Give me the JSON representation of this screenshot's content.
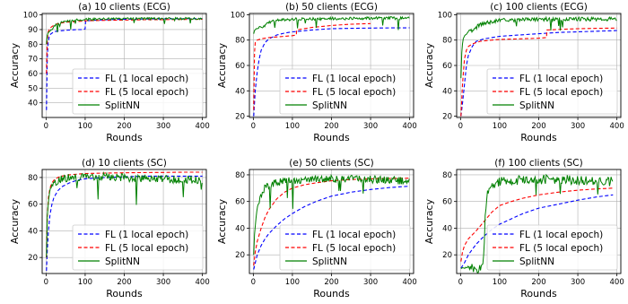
{
  "chart_data": [
    {
      "type": "line",
      "title": "(a) 10 clients (ECG)",
      "xlabel": "Rounds",
      "ylabel": "Accuracy",
      "xlim": [
        -10,
        410
      ],
      "ylim": [
        30,
        101
      ],
      "xticks": [
        0,
        100,
        200,
        300,
        400
      ],
      "yticks": [
        40,
        50,
        60,
        70,
        80,
        90,
        100
      ],
      "grid": true,
      "legend_position": "lower-right",
      "series": [
        {
          "name": "FL (1 local epoch)",
          "color": "#0000ff",
          "dash": "dashed",
          "x": [
            1,
            3,
            5,
            8,
            12,
            20,
            30,
            50,
            80,
            95,
            100,
            101,
            130,
            160,
            200,
            250,
            300,
            350,
            400
          ],
          "y": [
            35,
            70,
            80,
            85,
            87,
            88.5,
            89,
            89.5,
            90,
            90,
            90.5,
            96,
            96.5,
            96.8,
            97,
            97.2,
            97.3,
            97.4,
            97.5
          ]
        },
        {
          "name": "FL (5 local epoch)",
          "color": "#ff0000",
          "dash": "dashed",
          "x": [
            1,
            3,
            5,
            10,
            20,
            30,
            50,
            80,
            100,
            150,
            200,
            250,
            300,
            350,
            400
          ],
          "y": [
            60,
            82,
            88,
            91,
            93,
            94,
            95,
            95.5,
            96,
            96.3,
            96.5,
            96.7,
            96.8,
            96.9,
            97
          ]
        },
        {
          "name": "SplitNN",
          "color": "#008000",
          "dash": "solid",
          "x": [
            1,
            2,
            4,
            6,
            10,
            15,
            20,
            30,
            40,
            60,
            80,
            100,
            150,
            200,
            250,
            300,
            350,
            400
          ],
          "y": [
            80,
            85,
            87,
            88,
            89,
            90,
            92,
            94,
            95,
            96,
            96.5,
            97,
            97.2,
            97.3,
            97.4,
            97.5,
            97.5,
            97.5
          ],
          "noise": 0.8
        }
      ]
    },
    {
      "type": "line",
      "title": "(b) 50 clients (ECG)",
      "xlabel": "Rounds",
      "ylabel": "Accuracy",
      "xlim": [
        -10,
        410
      ],
      "ylim": [
        19,
        101
      ],
      "xticks": [
        0,
        100,
        200,
        300,
        400
      ],
      "yticks": [
        20,
        40,
        60,
        80,
        100
      ],
      "grid": true,
      "legend_position": "lower-right",
      "series": [
        {
          "name": "FL (1 local epoch)",
          "color": "#0000ff",
          "dash": "dashed",
          "x": [
            1,
            5,
            10,
            15,
            20,
            30,
            40,
            60,
            80,
            100,
            150,
            200,
            250,
            300,
            350,
            400
          ],
          "y": [
            20,
            40,
            55,
            65,
            72,
            78,
            81,
            84,
            85.5,
            86.5,
            88,
            89,
            89.3,
            89.5,
            89.6,
            89.7
          ]
        },
        {
          "name": "FL (5 local epoch)",
          "color": "#ff0000",
          "dash": "dashed",
          "x": [
            1,
            3,
            5,
            10,
            20,
            40,
            60,
            80,
            100,
            110,
            111,
            150,
            200,
            250,
            300
          ],
          "y": [
            25,
            70,
            78,
            80,
            81,
            82,
            82.5,
            83,
            83.5,
            84,
            88,
            90,
            91.5,
            92.5,
            93
          ]
        },
        {
          "name": "SplitNN",
          "color": "#008000",
          "dash": "solid",
          "x": [
            1,
            2,
            4,
            8,
            15,
            25,
            35,
            50,
            80,
            100,
            150,
            200,
            250,
            300,
            350,
            400
          ],
          "y": [
            85,
            87,
            88,
            89,
            90,
            90.5,
            93,
            95,
            96,
            96.5,
            96.8,
            97,
            97,
            97.2,
            97.3,
            97.3
          ],
          "noise": 1.2
        }
      ]
    },
    {
      "type": "line",
      "title": "(c) 100 clients (ECG)",
      "xlabel": "Rounds",
      "ylabel": "Accuracy",
      "xlim": [
        -10,
        410
      ],
      "ylim": [
        19,
        101
      ],
      "xticks": [
        0,
        100,
        200,
        300,
        400
      ],
      "yticks": [
        20,
        40,
        60,
        80,
        100
      ],
      "grid": true,
      "legend_position": "lower-right",
      "series": [
        {
          "name": "FL (1 local epoch)",
          "color": "#0000ff",
          "dash": "dashed",
          "x": [
            1,
            5,
            10,
            15,
            20,
            30,
            40,
            60,
            80,
            100,
            150,
            200,
            250,
            300,
            350,
            400
          ],
          "y": [
            20,
            30,
            45,
            60,
            68,
            75,
            79,
            81,
            82,
            83,
            84,
            85,
            86,
            86.5,
            87,
            87.5
          ]
        },
        {
          "name": "FL (5 local epoch)",
          "color": "#ff0000",
          "dash": "dashed",
          "x": [
            1,
            5,
            10,
            15,
            20,
            30,
            50,
            80,
            100,
            150,
            200,
            220,
            221,
            260,
            300,
            350,
            400
          ],
          "y": [
            20,
            45,
            65,
            72,
            75,
            77,
            79,
            80,
            80.5,
            81,
            81.5,
            82,
            88,
            88.5,
            89,
            89.3,
            89.5
          ]
        },
        {
          "name": "SplitNN",
          "color": "#008000",
          "dash": "solid",
          "x": [
            1,
            3,
            6,
            10,
            20,
            30,
            40,
            50,
            60,
            80,
            100,
            150,
            200,
            250,
            300,
            350,
            400
          ],
          "y": [
            50,
            70,
            80,
            84,
            86,
            88,
            90,
            92,
            93,
            94.5,
            95.5,
            96,
            96.3,
            96.5,
            96.5,
            96.6,
            96.6
          ],
          "noise": 1.6
        }
      ]
    },
    {
      "type": "line",
      "title": "(d) 10 clients (SC)",
      "xlabel": "Rounds",
      "ylabel": "Accuracy",
      "xlim": [
        -10,
        410
      ],
      "ylim": [
        8,
        86
      ],
      "xticks": [
        0,
        100,
        200,
        300,
        400
      ],
      "yticks": [
        20,
        40,
        60,
        80
      ],
      "grid": true,
      "legend_position": "lower-right",
      "series": [
        {
          "name": "FL (1 local epoch)",
          "color": "#0000ff",
          "dash": "dashed",
          "x": [
            1,
            3,
            6,
            10,
            15,
            20,
            30,
            40,
            60,
            80,
            100,
            150,
            200,
            250,
            300,
            350,
            400
          ],
          "y": [
            10,
            25,
            40,
            52,
            60,
            65,
            70,
            73,
            76,
            78,
            79,
            80,
            80.5,
            81,
            81,
            81,
            81
          ]
        },
        {
          "name": "FL (5 local epoch)",
          "color": "#ff0000",
          "dash": "dashed",
          "x": [
            1,
            3,
            6,
            10,
            15,
            20,
            30,
            40,
            60,
            80,
            100,
            150,
            200,
            250,
            300,
            350,
            400
          ],
          "y": [
            20,
            50,
            65,
            72,
            76,
            78,
            80,
            81,
            82,
            82.5,
            83,
            83.3,
            83.5,
            83.7,
            83.8,
            84,
            84
          ]
        },
        {
          "name": "SplitNN",
          "color": "#008000",
          "dash": "solid",
          "x": [
            1,
            3,
            6,
            10,
            15,
            20,
            30,
            40,
            60,
            80,
            100,
            150,
            200,
            250,
            300,
            350,
            400
          ],
          "y": [
            20,
            50,
            62,
            70,
            74,
            76,
            78,
            79,
            80,
            80.5,
            80.5,
            80.5,
            80,
            79.5,
            79,
            78.5,
            78
          ],
          "noise": 3
        }
      ]
    },
    {
      "type": "line",
      "title": "(e) 50 clients (SC)",
      "xlabel": "Rounds",
      "ylabel": "Accuracy",
      "xlim": [
        -10,
        410
      ],
      "ylim": [
        6,
        84
      ],
      "xticks": [
        0,
        100,
        200,
        300,
        400
      ],
      "yticks": [
        20,
        40,
        60,
        80
      ],
      "grid": true,
      "legend_position": "lower-right",
      "series": [
        {
          "name": "FL (1 local epoch)",
          "color": "#0000ff",
          "dash": "dashed",
          "x": [
            1,
            10,
            20,
            30,
            40,
            60,
            80,
            100,
            130,
            160,
            200,
            250,
            300,
            350,
            400
          ],
          "y": [
            9,
            20,
            27,
            32,
            36,
            42,
            47,
            51,
            56,
            60,
            64,
            67,
            69,
            70.5,
            71.5
          ]
        },
        {
          "name": "FL (5 local epoch)",
          "color": "#ff0000",
          "dash": "dashed",
          "x": [
            1,
            5,
            10,
            20,
            30,
            40,
            60,
            80,
            100,
            130,
            160,
            200,
            250,
            300,
            350,
            400
          ],
          "y": [
            12,
            22,
            30,
            40,
            48,
            54,
            62,
            67,
            70,
            72.5,
            74,
            75.5,
            76.5,
            77,
            77.3,
            77.5
          ]
        },
        {
          "name": "SplitNN",
          "color": "#008000",
          "dash": "solid",
          "x": [
            1,
            3,
            6,
            10,
            15,
            20,
            30,
            40,
            60,
            80,
            100,
            150,
            200,
            250,
            300,
            350,
            400
          ],
          "y": [
            20,
            35,
            45,
            55,
            60,
            65,
            70,
            72,
            74,
            75,
            76,
            76.5,
            77,
            77,
            76.5,
            76,
            75
          ],
          "noise": 3
        }
      ]
    },
    {
      "type": "line",
      "title": "(f) 100 clients (SC)",
      "xlabel": "Rounds",
      "ylabel": "Accuracy",
      "xlim": [
        -10,
        410
      ],
      "ylim": [
        6,
        84
      ],
      "xticks": [
        0,
        100,
        200,
        300,
        400
      ],
      "yticks": [
        20,
        40,
        60,
        80
      ],
      "grid": true,
      "legend_position": "lower-right",
      "series": [
        {
          "name": "FL (1 local epoch)",
          "color": "#0000ff",
          "dash": "dashed",
          "x": [
            1,
            10,
            20,
            30,
            40,
            60,
            80,
            100,
            130,
            160,
            200,
            250,
            300,
            350,
            390
          ],
          "y": [
            10,
            14,
            20,
            24,
            28,
            34,
            39,
            43,
            47,
            51,
            55,
            58,
            61,
            63.5,
            65
          ]
        },
        {
          "name": "FL (5 local epoch)",
          "color": "#ff0000",
          "dash": "dashed",
          "x": [
            1,
            5,
            10,
            20,
            30,
            40,
            60,
            80,
            100,
            130,
            160,
            200,
            250,
            300,
            350,
            390
          ],
          "y": [
            15,
            22,
            27,
            32,
            35,
            38,
            45,
            52,
            57,
            60,
            62.5,
            65,
            67,
            68.5,
            69.5,
            70
          ]
        },
        {
          "name": "SplitNN",
          "color": "#008000",
          "dash": "solid",
          "x": [
            1,
            20,
            40,
            55,
            60,
            62,
            66,
            70,
            80,
            100,
            150,
            200,
            250,
            300,
            350,
            390
          ],
          "y": [
            10,
            10,
            10,
            10,
            20,
            45,
            60,
            68,
            72,
            75,
            76,
            76.5,
            76.5,
            76,
            75.5,
            75
          ],
          "noise": 3.5
        }
      ]
    }
  ]
}
